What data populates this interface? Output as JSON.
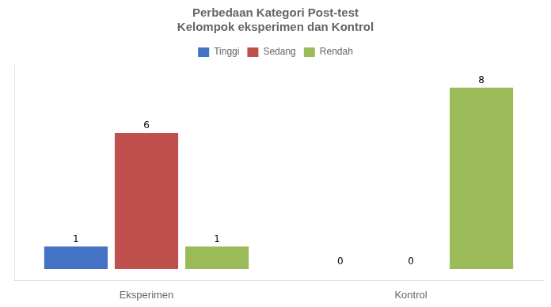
{
  "chart_data": {
    "type": "bar",
    "title": "Perbedaan Kategori Post-test\nKelompok eksperimen dan Kontrol",
    "categories": [
      "Eksperimen",
      "Kontrol"
    ],
    "series": [
      {
        "name": "Tinggi",
        "color": "#4472C4",
        "values": [
          1,
          0
        ]
      },
      {
        "name": "Sedang",
        "color": "#C0504D",
        "values": [
          6,
          0
        ]
      },
      {
        "name": "Rendah",
        "color": "#9BBB59",
        "values": [
          1,
          8
        ]
      }
    ],
    "ylim": [
      -0.5,
      9
    ],
    "grid": false,
    "legend": "top",
    "data_labels": true,
    "tick_labels": "x"
  }
}
